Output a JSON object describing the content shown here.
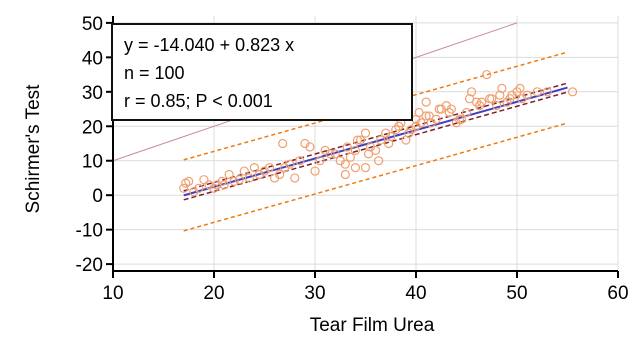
{
  "chart_data": {
    "type": "scatter",
    "title": "",
    "xlabel": "Tear Film Urea",
    "ylabel": "Schirmer's Test",
    "xlim": [
      10,
      60
    ],
    "ylim": [
      -22,
      52
    ],
    "xticks": [
      10,
      20,
      30,
      40,
      50,
      60
    ],
    "yticks": [
      -20,
      -10,
      0,
      10,
      20,
      30,
      40,
      50
    ],
    "grid": true,
    "annotation": [
      "y = -14.040  +  0.823  x",
      "n = 100",
      "r = 0.85; P < 0.001"
    ],
    "regression": {
      "intercept": -14.04,
      "slope": 0.823,
      "x_range": [
        17,
        55
      ]
    },
    "confidence_band_half_width": 1.3,
    "prediction_band_half_width": 10.3,
    "identity_line": {
      "x_range": [
        10,
        50
      ]
    },
    "colors": {
      "points": "#f0a070",
      "regression": "#3f3fc0",
      "confidence": "#7a1f2b",
      "prediction": "#f07a10",
      "identity": "#c88aa0",
      "grid": "#dcdcdc"
    },
    "points": [
      [
        17,
        2
      ],
      [
        17.2,
        3.5
      ],
      [
        17.5,
        4
      ],
      [
        18,
        1
      ],
      [
        18.5,
        2
      ],
      [
        19,
        4.5
      ],
      [
        19.5,
        3
      ],
      [
        20,
        2
      ],
      [
        20.3,
        3
      ],
      [
        20.8,
        4
      ],
      [
        21,
        3
      ],
      [
        21.5,
        6
      ],
      [
        22,
        4
      ],
      [
        22.5,
        4.5
      ],
      [
        23,
        7
      ],
      [
        23.5,
        5
      ],
      [
        24,
        8
      ],
      [
        24.5,
        6
      ],
      [
        25,
        7
      ],
      [
        25.5,
        8
      ],
      [
        26,
        5
      ],
      [
        26.5,
        6
      ],
      [
        26.8,
        15
      ],
      [
        27,
        8
      ],
      [
        27.5,
        9
      ],
      [
        28,
        5
      ],
      [
        28.5,
        10
      ],
      [
        29,
        15
      ],
      [
        29.5,
        14
      ],
      [
        30,
        7
      ],
      [
        30.5,
        10
      ],
      [
        31,
        13
      ],
      [
        31.5,
        12
      ],
      [
        32,
        12
      ],
      [
        32.5,
        10
      ],
      [
        33,
        9
      ],
      [
        33.2,
        14
      ],
      [
        33.5,
        11
      ],
      [
        34,
        13
      ],
      [
        34.2,
        16
      ],
      [
        34.5,
        16
      ],
      [
        35,
        18
      ],
      [
        35.3,
        12
      ],
      [
        35.5,
        14
      ],
      [
        36,
        13
      ],
      [
        36.3,
        10
      ],
      [
        36.5,
        16
      ],
      [
        37,
        18
      ],
      [
        37.3,
        15
      ],
      [
        37.5,
        17
      ],
      [
        38,
        19
      ],
      [
        38.3,
        20
      ],
      [
        38.5,
        21
      ],
      [
        39,
        16
      ],
      [
        39.3,
        18
      ],
      [
        39.5,
        19
      ],
      [
        40,
        20
      ],
      [
        40,
        22
      ],
      [
        40.3,
        24
      ],
      [
        40.5,
        21
      ],
      [
        41,
        23
      ],
      [
        41.3,
        23
      ],
      [
        41.5,
        21
      ],
      [
        42,
        22
      ],
      [
        42.3,
        25
      ],
      [
        42.5,
        25
      ],
      [
        43,
        26
      ],
      [
        43.3,
        24
      ],
      [
        43.5,
        25
      ],
      [
        44,
        21
      ],
      [
        44.3,
        22
      ],
      [
        44.5,
        22
      ],
      [
        45,
        24
      ],
      [
        45.3,
        28
      ],
      [
        45.5,
        30
      ],
      [
        46,
        27
      ],
      [
        46.3,
        26
      ],
      [
        46.5,
        27
      ],
      [
        47,
        35
      ],
      [
        47.3,
        28
      ],
      [
        47.5,
        28
      ],
      [
        48,
        26
      ],
      [
        48.3,
        29
      ],
      [
        48.5,
        31
      ],
      [
        49,
        27
      ],
      [
        49.3,
        28
      ],
      [
        49.5,
        29
      ],
      [
        50,
        30
      ],
      [
        50.3,
        31
      ],
      [
        50.5,
        28
      ],
      [
        51,
        29
      ],
      [
        52,
        30
      ],
      [
        53,
        30
      ],
      [
        55.5,
        30
      ],
      [
        38,
        30
      ],
      [
        39,
        28
      ],
      [
        41,
        27
      ],
      [
        35,
        8
      ],
      [
        33,
        6
      ],
      [
        34,
        8
      ]
    ]
  }
}
